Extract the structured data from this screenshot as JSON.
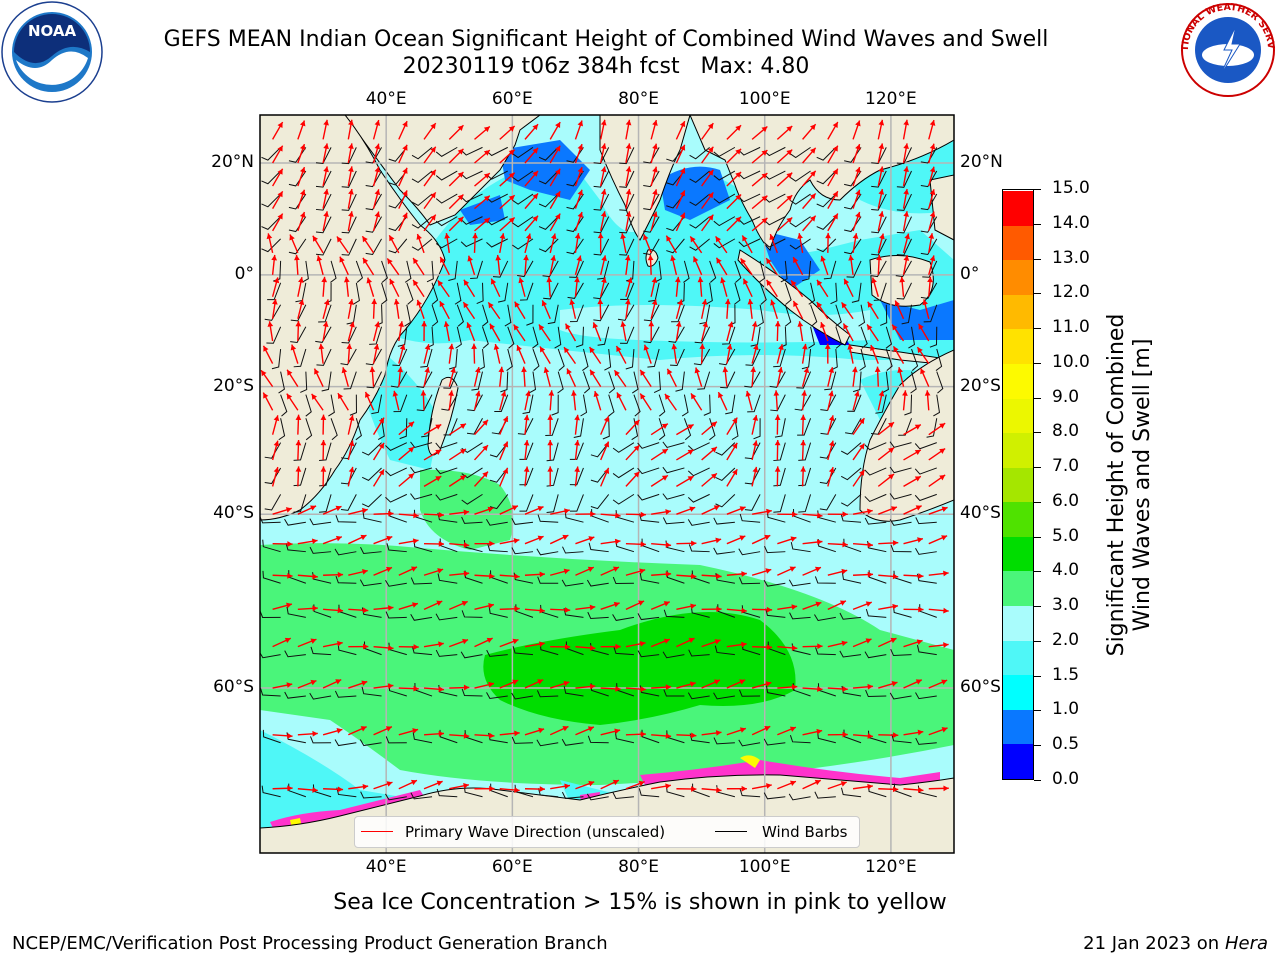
{
  "title": {
    "line1": "GEFS MEAN Indian Ocean Significant Height of Combined Wind Waves and Swell",
    "line2": "20230119 t06z 384h fcst   Max: 4.80"
  },
  "logos": {
    "left": "NOAA",
    "right_text": "NATIONAL WEATHER SERVICE"
  },
  "map": {
    "lon_range": [
      20,
      130
    ],
    "lat_range": [
      -72,
      28
    ],
    "lon_ticks": [
      "40°E",
      "60°E",
      "80°E",
      "100°E",
      "120°E"
    ],
    "lat_ticks": [
      "20°N",
      "0°",
      "20°S",
      "40°S",
      "60°S"
    ],
    "land_color": "#efecd9",
    "ocean_base_color": "#a9fcfc",
    "grid": true
  },
  "colorbar": {
    "title_line1": "Significant Height of Combined",
    "title_line2": "Wind Waves and Swell [m]",
    "levels": [
      "0.0",
      "0.5",
      "1.0",
      "1.5",
      "2.0",
      "3.0",
      "4.0",
      "5.0",
      "6.0",
      "7.0",
      "8.0",
      "9.0",
      "10.0",
      "11.0",
      "12.0",
      "13.0",
      "14.0",
      "15.0"
    ],
    "colors": [
      "#0000ff",
      "#0a78ff",
      "#00ffff",
      "#4ff7f7",
      "#a9fcfc",
      "#4af57a",
      "#00dd00",
      "#4fe200",
      "#a5e600",
      "#d0f000",
      "#ecf700",
      "#fdfa00",
      "#ffe200",
      "#ffba00",
      "#ff8c00",
      "#ff5a00",
      "#ff0000"
    ]
  },
  "legend": {
    "wave_label": "Primary Wave Direction (unscaled)",
    "wave_color": "#ff0000",
    "barb_label": "Wind Barbs",
    "barb_color": "#000000"
  },
  "caption": "Sea Ice Concentration > 15% is shown in pink to yellow",
  "footer": {
    "left": "NCEP/EMC/Verification Post Processing Product Generation Branch",
    "right_date": "21 Jan 2023 on ",
    "right_host": "Hera"
  }
}
